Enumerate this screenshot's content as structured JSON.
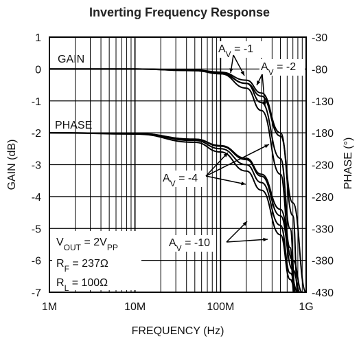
{
  "chart_data": {
    "type": "line",
    "title": "Inverting Frequency Response",
    "xlabel": "FREQUENCY (Hz)",
    "ylabel_left": "GAIN (dB)",
    "ylabel_right": "PHASE (°)",
    "x_scale": "log",
    "xlim": [
      1000000,
      1000000000
    ],
    "x_ticks": [
      {
        "value": 1000000,
        "label": "1M"
      },
      {
        "value": 10000000,
        "label": "10M"
      },
      {
        "value": 100000000,
        "label": "100M"
      },
      {
        "value": 1000000000,
        "label": "1G"
      }
    ],
    "ylim_left": [
      -7,
      1
    ],
    "y_ticks_left": [
      1,
      0,
      -1,
      -2,
      -3,
      -4,
      -5,
      -6,
      -7
    ],
    "ylim_right": [
      -430,
      -30
    ],
    "y_ticks_right": [
      -30,
      -80,
      -130,
      -180,
      -230,
      -280,
      -330,
      -380,
      -430
    ],
    "grid": true,
    "labels": {
      "gain": "GAIN",
      "phase": "PHASE"
    },
    "conditions": [
      "V_OUT = 2V_PP",
      "R_F = 237Ω",
      "R_L = 100Ω"
    ],
    "annotations": [
      "A_V = -1",
      "A_V = -2",
      "A_V = -4",
      "A_V = -10"
    ],
    "series": [
      {
        "group": "GAIN",
        "gain_label": "A_V = -1",
        "x": [
          1000000,
          10000000,
          50000000,
          100000000,
          200000000,
          300000000,
          500000000,
          700000000,
          1000000000
        ],
        "y": [
          0,
          0,
          -0.05,
          -0.15,
          -0.45,
          -0.85,
          -2.1,
          -4.2,
          -7
        ]
      },
      {
        "group": "GAIN",
        "gain_label": "A_V = -2",
        "x": [
          1000000,
          10000000,
          50000000,
          100000000,
          200000000,
          300000000,
          500000000,
          700000000,
          800000000
        ],
        "y": [
          0,
          0,
          -0.03,
          -0.1,
          -0.35,
          -0.75,
          -2.0,
          -4.6,
          -7
        ]
      },
      {
        "group": "GAIN",
        "gain_label": "A_V = -4",
        "x": [
          1000000,
          10000000,
          50000000,
          100000000,
          200000000,
          300000000,
          500000000,
          650000000,
          750000000
        ],
        "y": [
          0,
          0,
          -0.04,
          -0.12,
          -0.45,
          -1.05,
          -2.8,
          -5.0,
          -7
        ]
      },
      {
        "group": "GAIN",
        "gain_label": "A_V = -10",
        "x": [
          1000000,
          10000000,
          50000000,
          100000000,
          200000000,
          300000000,
          500000000,
          650000000,
          720000000
        ],
        "y": [
          0,
          0,
          -0.05,
          -0.15,
          -0.6,
          -1.3,
          -3.3,
          -5.6,
          -7
        ]
      },
      {
        "group": "PHASE",
        "gain_label": "A_V = -1",
        "x": [
          1000000,
          10000000,
          50000000,
          100000000,
          200000000,
          300000000,
          500000000,
          700000000,
          900000000
        ],
        "y": [
          -180,
          -181,
          -190,
          -200,
          -220,
          -245,
          -300,
          -380,
          -430
        ]
      },
      {
        "group": "PHASE",
        "gain_label": "A_V = -2",
        "x": [
          1000000,
          10000000,
          50000000,
          100000000,
          200000000,
          300000000,
          500000000,
          700000000,
          850000000
        ],
        "y": [
          -180,
          -181,
          -190,
          -201,
          -222,
          -248,
          -310,
          -395,
          -430
        ]
      },
      {
        "group": "PHASE",
        "gain_label": "A_V = -4",
        "x": [
          1000000,
          10000000,
          50000000,
          100000000,
          200000000,
          300000000,
          500000000,
          650000000,
          800000000
        ],
        "y": [
          -180,
          -181,
          -192,
          -205,
          -230,
          -258,
          -325,
          -400,
          -430
        ]
      },
      {
        "group": "PHASE",
        "gain_label": "A_V = -10",
        "x": [
          1000000,
          10000000,
          50000000,
          100000000,
          200000000,
          300000000,
          500000000,
          650000000,
          760000000
        ],
        "y": [
          -180,
          -182,
          -195,
          -210,
          -240,
          -270,
          -340,
          -410,
          -430
        ]
      }
    ]
  }
}
